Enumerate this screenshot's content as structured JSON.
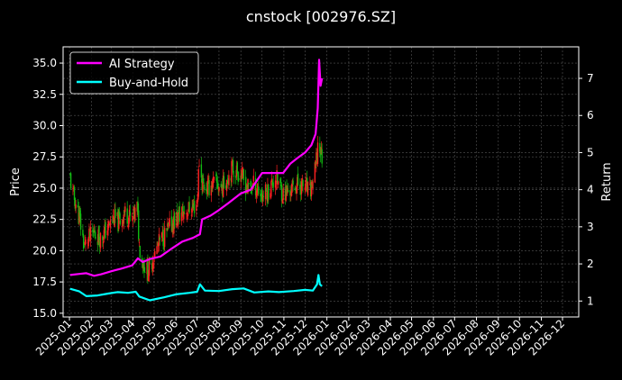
{
  "chart_data": {
    "type": "line",
    "title": "cnstock [002976.SZ]",
    "ylabel_left": "Price",
    "ylabel_right": "Return",
    "xlabel": "",
    "grid": true,
    "legend_position": "top-left",
    "x_ticks": [
      "2025-01",
      "2025-02",
      "2025-03",
      "2025-04",
      "2025-05",
      "2025-06",
      "2025-07",
      "2025-08",
      "2025-09",
      "2025-10",
      "2025-11",
      "2025-12",
      "2026-01",
      "2026-02",
      "2026-03",
      "2026-04",
      "2026-05",
      "2026-06",
      "2026-07",
      "2026-08",
      "2026-09",
      "2026-10",
      "2026-11",
      "2026-12"
    ],
    "x_range": [
      "2024-12-23",
      "2026-12-24"
    ],
    "y_left_ticks": [
      15.0,
      17.5,
      20.0,
      22.5,
      25.0,
      27.5,
      30.0,
      32.5,
      35.0
    ],
    "y_left_range": [
      14.7,
      36.3
    ],
    "y_right_ticks": [
      1,
      2,
      3,
      4,
      5,
      6,
      7
    ],
    "y_right_range": [
      0.57,
      7.85
    ],
    "colors": {
      "ai": "#ff00ff",
      "bh": "#00ffff",
      "up": "#ff2020",
      "down": "#11bb11",
      "background": "#000000",
      "grid": "#555555"
    },
    "series": [
      {
        "name": "AI Strategy",
        "axis": "right",
        "points": [
          [
            "2025-01-02",
            1.7
          ],
          [
            "2025-01-15",
            1.73
          ],
          [
            "2025-01-25",
            1.75
          ],
          [
            "2025-02-05",
            1.68
          ],
          [
            "2025-02-15",
            1.72
          ],
          [
            "2025-03-01",
            1.8
          ],
          [
            "2025-03-15",
            1.87
          ],
          [
            "2025-03-31",
            1.96
          ],
          [
            "2025-04-08",
            2.15
          ],
          [
            "2025-04-15",
            2.05
          ],
          [
            "2025-04-25",
            2.13
          ],
          [
            "2025-05-10",
            2.2
          ],
          [
            "2025-05-25",
            2.4
          ],
          [
            "2025-06-10",
            2.6
          ],
          [
            "2025-06-25",
            2.7
          ],
          [
            "2025-07-05",
            2.8
          ],
          [
            "2025-07-08",
            3.2
          ],
          [
            "2025-07-20",
            3.3
          ],
          [
            "2025-08-01",
            3.45
          ],
          [
            "2025-08-15",
            3.65
          ],
          [
            "2025-09-01",
            3.9
          ],
          [
            "2025-09-15",
            4.0
          ],
          [
            "2025-10-01",
            4.45
          ],
          [
            "2025-10-15",
            4.45
          ],
          [
            "2025-10-31",
            4.45
          ],
          [
            "2025-11-10",
            4.7
          ],
          [
            "2025-11-20",
            4.85
          ],
          [
            "2025-12-01",
            5.0
          ],
          [
            "2025-12-10",
            5.2
          ],
          [
            "2025-12-16",
            5.5
          ],
          [
            "2025-12-19",
            6.2
          ],
          [
            "2025-12-21",
            7.5
          ],
          [
            "2025-12-23",
            6.8
          ],
          [
            "2025-12-25",
            7.0
          ]
        ]
      },
      {
        "name": "Buy-and-Hold",
        "axis": "right",
        "points": [
          [
            "2025-01-02",
            1.33
          ],
          [
            "2025-01-15",
            1.26
          ],
          [
            "2025-01-25",
            1.13
          ],
          [
            "2025-02-10",
            1.15
          ],
          [
            "2025-02-25",
            1.2
          ],
          [
            "2025-03-10",
            1.24
          ],
          [
            "2025-03-25",
            1.22
          ],
          [
            "2025-04-05",
            1.25
          ],
          [
            "2025-04-10",
            1.12
          ],
          [
            "2025-04-25",
            1.02
          ],
          [
            "2025-05-15",
            1.1
          ],
          [
            "2025-06-01",
            1.18
          ],
          [
            "2025-06-20",
            1.22
          ],
          [
            "2025-07-01",
            1.25
          ],
          [
            "2025-07-05",
            1.45
          ],
          [
            "2025-07-12",
            1.28
          ],
          [
            "2025-08-01",
            1.27
          ],
          [
            "2025-08-20",
            1.32
          ],
          [
            "2025-09-05",
            1.34
          ],
          [
            "2025-09-20",
            1.23
          ],
          [
            "2025-10-10",
            1.26
          ],
          [
            "2025-10-25",
            1.24
          ],
          [
            "2025-11-15",
            1.27
          ],
          [
            "2025-12-01",
            1.3
          ],
          [
            "2025-12-12",
            1.28
          ],
          [
            "2025-12-18",
            1.45
          ],
          [
            "2025-12-20",
            1.7
          ],
          [
            "2025-12-22",
            1.45
          ],
          [
            "2025-12-25",
            1.4
          ]
        ]
      }
    ],
    "price_series": {
      "name": "Daily price (candlesticks)",
      "axis": "left",
      "points": [
        [
          "2025-01-02",
          25.8
        ],
        [
          "2025-01-06",
          24.5
        ],
        [
          "2025-01-10",
          23.8
        ],
        [
          "2025-01-15",
          22.6
        ],
        [
          "2025-01-18",
          21.7
        ],
        [
          "2025-01-22",
          20.3
        ],
        [
          "2025-01-27",
          20.9
        ],
        [
          "2025-02-05",
          21.4
        ],
        [
          "2025-02-15",
          21.0
        ],
        [
          "2025-02-25",
          21.9
        ],
        [
          "2025-03-05",
          22.6
        ],
        [
          "2025-03-12",
          22.2
        ],
        [
          "2025-03-20",
          23.1
        ],
        [
          "2025-03-31",
          22.4
        ],
        [
          "2025-04-07",
          23.5
        ],
        [
          "2025-04-10",
          20.5
        ],
        [
          "2025-04-15",
          19.1
        ],
        [
          "2025-04-22",
          18.3
        ],
        [
          "2025-04-28",
          19.2
        ],
        [
          "2025-05-08",
          20.6
        ],
        [
          "2025-05-20",
          21.6
        ],
        [
          "2025-06-01",
          22.6
        ],
        [
          "2025-06-15",
          23.2
        ],
        [
          "2025-06-25",
          23.4
        ],
        [
          "2025-07-01",
          23.9
        ],
        [
          "2025-07-04",
          27.2
        ],
        [
          "2025-07-08",
          25.4
        ],
        [
          "2025-07-15",
          25.0
        ],
        [
          "2025-07-25",
          25.4
        ],
        [
          "2025-08-05",
          25.0
        ],
        [
          "2025-08-12",
          25.8
        ],
        [
          "2025-08-20",
          26.6
        ],
        [
          "2025-09-01",
          26.1
        ],
        [
          "2025-09-10",
          25.0
        ],
        [
          "2025-09-20",
          25.3
        ],
        [
          "2025-10-01",
          24.4
        ],
        [
          "2025-10-10",
          24.8
        ],
        [
          "2025-10-20",
          25.9
        ],
        [
          "2025-10-31",
          24.5
        ],
        [
          "2025-11-10",
          24.8
        ],
        [
          "2025-11-20",
          25.3
        ],
        [
          "2025-12-01",
          25.1
        ],
        [
          "2025-12-08",
          24.6
        ],
        [
          "2025-12-15",
          26.3
        ],
        [
          "2025-12-18",
          27.5
        ],
        [
          "2025-12-20",
          29.5
        ],
        [
          "2025-12-22",
          28.2
        ],
        [
          "2025-12-25",
          27.5
        ]
      ]
    }
  }
}
